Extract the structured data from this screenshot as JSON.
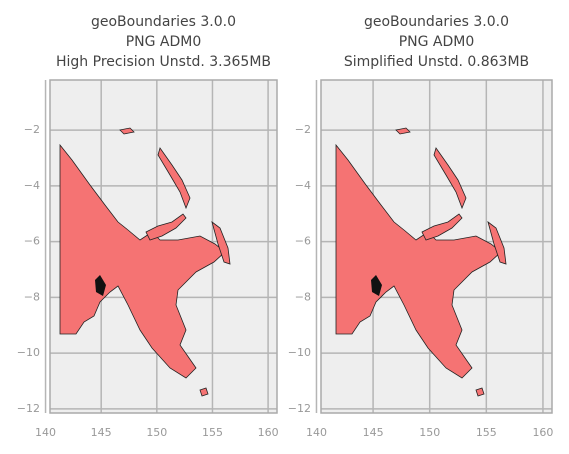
{
  "chart_data": [
    {
      "type": "map",
      "title": [
        "geoBoundaries 3.0.0",
        "PNG ADM0",
        "High Precision Unstd. 3.365MB"
      ],
      "color": "#f57373",
      "xlim": [
        140.4,
        160.8
      ],
      "ylim": [
        -12.15,
        -0.2
      ],
      "xticks": [
        140,
        145,
        150,
        155,
        160
      ],
      "yticks": [
        {
          "value": -2,
          "label": "−2"
        },
        {
          "value": -4,
          "label": "−4"
        },
        {
          "value": -6,
          "label": "−6"
        },
        {
          "value": -8,
          "label": "−8"
        },
        {
          "value": -10,
          "label": "−10"
        },
        {
          "value": -12,
          "label": "−12"
        }
      ],
      "grid": true
    },
    {
      "type": "map",
      "title": [
        "geoBoundaries 3.0.0",
        "PNG ADM0",
        "Simplified Unstd. 0.863MB"
      ],
      "color": "#f57373",
      "xlim": [
        140.4,
        160.8
      ],
      "ylim": [
        -12.15,
        -0.2
      ],
      "xticks": [
        140,
        145,
        150,
        155,
        160
      ],
      "yticks": [
        {
          "value": -2,
          "label": "−2"
        },
        {
          "value": -4,
          "label": "−4"
        },
        {
          "value": -6,
          "label": "−6"
        },
        {
          "value": -8,
          "label": "−8"
        },
        {
          "value": -10,
          "label": "−10"
        },
        {
          "value": -12,
          "label": "−12"
        }
      ],
      "grid": true
    }
  ]
}
